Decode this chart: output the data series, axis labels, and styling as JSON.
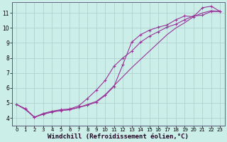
{
  "background_color": "#cceee8",
  "grid_color": "#aacccc",
  "line_color": "#993399",
  "xlim": [
    -0.5,
    23.5
  ],
  "ylim": [
    3.5,
    11.7
  ],
  "xlabel": "Windchill (Refroidissement éolien,°C)",
  "xlabel_fontsize": 6.5,
  "yticks": [
    4,
    5,
    6,
    7,
    8,
    9,
    10,
    11
  ],
  "xticks": [
    0,
    1,
    2,
    3,
    4,
    5,
    6,
    7,
    8,
    9,
    10,
    11,
    12,
    13,
    14,
    15,
    16,
    17,
    18,
    19,
    20,
    21,
    22,
    23
  ],
  "line1_x": [
    0,
    1,
    2,
    3,
    4,
    5,
    6,
    7,
    8,
    9,
    10,
    11,
    12,
    13,
    14,
    15,
    16,
    17,
    18,
    19,
    20,
    21,
    22,
    23
  ],
  "line1_y": [
    4.9,
    4.6,
    4.05,
    4.25,
    4.4,
    4.5,
    4.55,
    4.7,
    4.85,
    5.05,
    5.5,
    6.1,
    7.55,
    9.05,
    9.55,
    9.85,
    10.05,
    10.2,
    10.55,
    10.8,
    10.75,
    11.35,
    11.45,
    11.1
  ],
  "line2_x": [
    0,
    1,
    2,
    3,
    4,
    5,
    6,
    7,
    8,
    9,
    10,
    11,
    12,
    13,
    14,
    15,
    16,
    17,
    18,
    19,
    20,
    21,
    22,
    23
  ],
  "line2_y": [
    4.9,
    4.6,
    4.05,
    4.3,
    4.45,
    4.55,
    4.6,
    4.8,
    5.3,
    5.85,
    6.5,
    7.45,
    8.0,
    8.45,
    9.05,
    9.45,
    9.75,
    10.05,
    10.25,
    10.55,
    10.8,
    10.85,
    11.1,
    11.1
  ],
  "line3_x": [
    0,
    1,
    2,
    3,
    4,
    5,
    6,
    7,
    8,
    9,
    10,
    11,
    12,
    13,
    14,
    15,
    16,
    17,
    18,
    19,
    20,
    21,
    22,
    23
  ],
  "line3_y": [
    4.9,
    4.55,
    4.05,
    4.25,
    4.4,
    4.5,
    4.55,
    4.7,
    4.9,
    5.1,
    5.55,
    6.15,
    6.75,
    7.35,
    7.9,
    8.45,
    9.0,
    9.55,
    10.0,
    10.35,
    10.75,
    11.0,
    11.15,
    11.1
  ]
}
